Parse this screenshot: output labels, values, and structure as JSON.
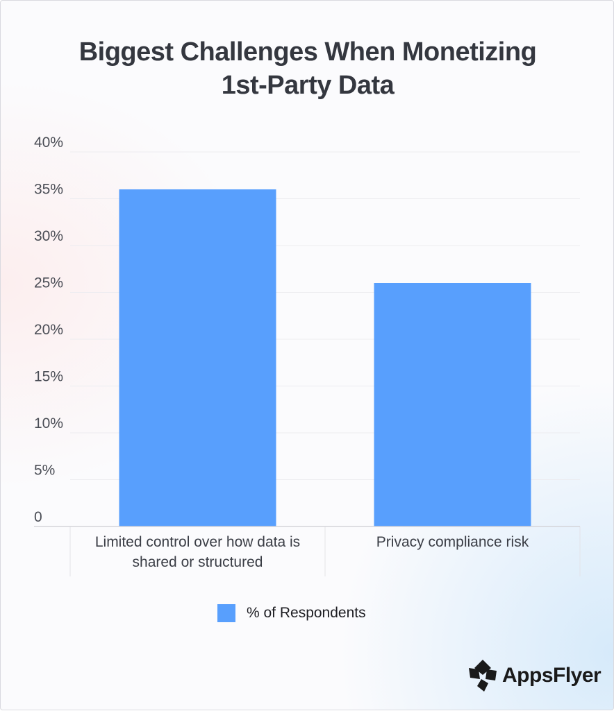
{
  "chart_data": {
    "type": "bar",
    "title_lines": [
      "Biggest Challenges When Monetizing",
      "1st-Party Data"
    ],
    "categories": [
      [
        "Limited control over how data is",
        "shared or structured"
      ],
      [
        "Privacy compliance risk"
      ]
    ],
    "series": [
      {
        "name": "% of Respondents",
        "values": [
          36,
          26
        ],
        "color": "#589ffd"
      }
    ],
    "y_ticks": [
      {
        "value": 0,
        "label": "0"
      },
      {
        "value": 5,
        "label": "5%"
      },
      {
        "value": 10,
        "label": "10%"
      },
      {
        "value": 15,
        "label": "15%"
      },
      {
        "value": 20,
        "label": "20%"
      },
      {
        "value": 25,
        "label": "25%"
      },
      {
        "value": 30,
        "label": "30%"
      },
      {
        "value": 35,
        "label": "35%"
      },
      {
        "value": 40,
        "label": "40%"
      }
    ],
    "ylim": [
      0,
      40
    ],
    "grid": true,
    "legend_position": "bottom-center"
  },
  "brand": {
    "name": "AppsFlyer",
    "logo": "appsflyer-logo-icon"
  }
}
